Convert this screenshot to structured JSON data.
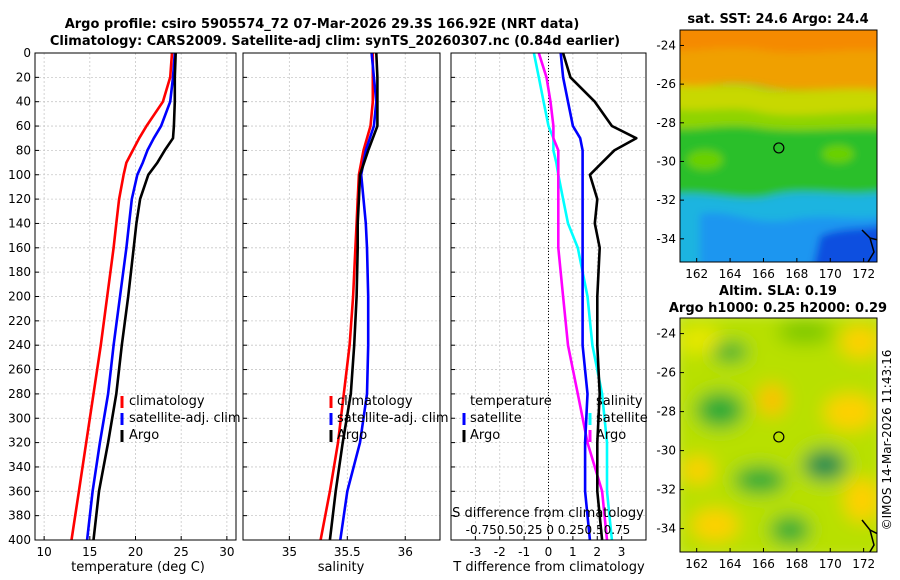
{
  "header": {
    "line1": "Argo profile: csiro 5905574_72 07-Mar-2026 29.3S 166.92E (NRT data)",
    "line2": "Climatology: CARS2009. Satellite-adj clim: synTS_20260307.nc (0.84d earlier)"
  },
  "sst_title": "sat. SST: 24.6 Argo: 24.4",
  "sla_title1": "Altim. SLA: 0.19",
  "sla_title2": "Argo h1000: 0.25 h2000: 0.29",
  "credit": "©IMOS 14-Mar-2026 11:43:16",
  "colors": {
    "climatology": "#ff0000",
    "satellite": "#0000ff",
    "argo": "#000000",
    "salinity_diff": "#ff00ff",
    "temperature_diff": "#00ffff"
  },
  "chart_data": [
    {
      "type": "line",
      "name": "temperature",
      "xlabel": "temperature (deg C)",
      "ylabel": "",
      "xlim": [
        9,
        31
      ],
      "ylim": [
        400,
        0
      ],
      "xticks": [
        10,
        15,
        20,
        25,
        30
      ],
      "yticks": [
        0,
        20,
        40,
        60,
        80,
        100,
        120,
        140,
        160,
        180,
        200,
        220,
        240,
        260,
        280,
        300,
        320,
        340,
        360,
        380,
        400
      ],
      "grid": true,
      "legend": "bottom-right",
      "depth": [
        0,
        20,
        40,
        60,
        70,
        80,
        90,
        100,
        120,
        140,
        160,
        200,
        240,
        280,
        320,
        360,
        400
      ],
      "series": [
        {
          "name": "climatology",
          "values": [
            24.0,
            23.8,
            23.0,
            21.2,
            20.4,
            19.7,
            19.0,
            18.7,
            18.2,
            17.9,
            17.6,
            16.9,
            16.2,
            15.4,
            14.6,
            13.8,
            13.0
          ]
        },
        {
          "name": "satellite-adj. clim",
          "values": [
            24.3,
            24.1,
            23.8,
            22.8,
            22.0,
            21.3,
            20.8,
            20.2,
            19.6,
            19.3,
            19.0,
            18.3,
            17.6,
            17.0,
            16.1,
            15.3,
            14.7
          ]
        },
        {
          "name": "Argo",
          "values": [
            24.4,
            24.3,
            24.3,
            24.2,
            24.1,
            23.2,
            22.4,
            21.4,
            20.5,
            20.1,
            19.8,
            19.2,
            18.5,
            17.9,
            17.0,
            16.0,
            15.4
          ]
        }
      ]
    },
    {
      "type": "line",
      "name": "salinity",
      "xlabel": "salinity",
      "ylabel": "",
      "xlim": [
        34.6,
        36.3
      ],
      "ylim": [
        400,
        0
      ],
      "xticks": [
        35,
        35.5,
        36
      ],
      "grid": true,
      "legend": "bottom-right",
      "depth": [
        0,
        20,
        40,
        60,
        80,
        100,
        120,
        140,
        160,
        200,
        240,
        280,
        320,
        360,
        400
      ],
      "series": [
        {
          "name": "climatology",
          "values": [
            35.72,
            35.72,
            35.72,
            35.7,
            35.64,
            35.6,
            35.59,
            35.58,
            35.57,
            35.55,
            35.52,
            35.47,
            35.42,
            35.35,
            35.27
          ]
        },
        {
          "name": "satellite-adj. clim",
          "values": [
            35.71,
            35.73,
            35.75,
            35.73,
            35.66,
            35.62,
            35.64,
            35.66,
            35.67,
            35.68,
            35.68,
            35.67,
            35.61,
            35.5,
            35.44
          ]
        },
        {
          "name": "Argo",
          "values": [
            35.75,
            35.76,
            35.76,
            35.76,
            35.68,
            35.61,
            35.6,
            35.59,
            35.59,
            35.58,
            35.56,
            35.53,
            35.46,
            35.4,
            35.35
          ]
        }
      ]
    },
    {
      "type": "line",
      "name": "difference",
      "xlabel": "T difference from climatology",
      "xlabel_top": "S difference from climatology",
      "top_ticks": [
        "-0.75",
        "0.5",
        "0.25",
        "0",
        "0.25",
        "0.5",
        "0.75"
      ],
      "xlim": [
        -4,
        4
      ],
      "ylim": [
        400,
        0
      ],
      "xticks": [
        -3,
        -2,
        -1,
        0,
        1,
        2,
        3
      ],
      "grid": true,
      "legend_titles": [
        "temperature",
        "salinity"
      ],
      "depth": [
        0,
        20,
        40,
        60,
        70,
        80,
        90,
        100,
        120,
        140,
        160,
        200,
        240,
        280,
        320,
        360,
        400
      ],
      "series": [
        {
          "name": "satellite (temperature)",
          "values": [
            0.5,
            0.6,
            0.8,
            1.0,
            1.3,
            1.4,
            1.4,
            1.4,
            1.4,
            1.4,
            1.4,
            1.4,
            1.4,
            1.6,
            1.5,
            1.5,
            1.7
          ]
        },
        {
          "name": "Argo (temperature)",
          "values": [
            0.6,
            0.9,
            1.9,
            2.6,
            3.6,
            2.7,
            2.2,
            1.7,
            2.0,
            1.9,
            2.1,
            2.0,
            2.0,
            2.1,
            2.0,
            2.0,
            2.2
          ]
        },
        {
          "name": "satellite (salinity)",
          "values": [
            -0.15,
            -0.1,
            -0.05,
            0.0,
            0.05,
            0.05,
            0.08,
            0.1,
            0.15,
            0.2,
            0.3,
            0.4,
            0.45,
            0.55,
            0.6,
            0.6,
            0.65
          ]
        },
        {
          "name": "Argo (salinity)",
          "values": [
            -0.1,
            -0.02,
            0.02,
            0.05,
            0.05,
            0.1,
            0.1,
            0.1,
            0.1,
            0.1,
            0.1,
            0.15,
            0.2,
            0.3,
            0.4,
            0.55,
            0.6
          ]
        }
      ]
    },
    {
      "type": "heatmap",
      "name": "sst_map",
      "title": "sat. SST: 24.6 Argo: 24.4",
      "xlim": [
        161,
        172.8
      ],
      "ylim": [
        -35.2,
        -23.2
      ],
      "xticks": [
        162,
        164,
        166,
        168,
        170,
        172
      ],
      "yticks": [
        -24,
        -26,
        -28,
        -30,
        -32,
        -34
      ],
      "argo_position": [
        166.92,
        -29.3
      ]
    },
    {
      "type": "heatmap",
      "name": "sla_map",
      "title": "Altim. SLA: 0.19",
      "xlim": [
        161,
        172.8
      ],
      "ylim": [
        -35.2,
        -23.2
      ],
      "xticks": [
        162,
        164,
        166,
        168,
        170,
        172
      ],
      "yticks": [
        -24,
        -26,
        -28,
        -30,
        -32,
        -34
      ],
      "argo_position": [
        166.92,
        -29.3
      ]
    }
  ]
}
